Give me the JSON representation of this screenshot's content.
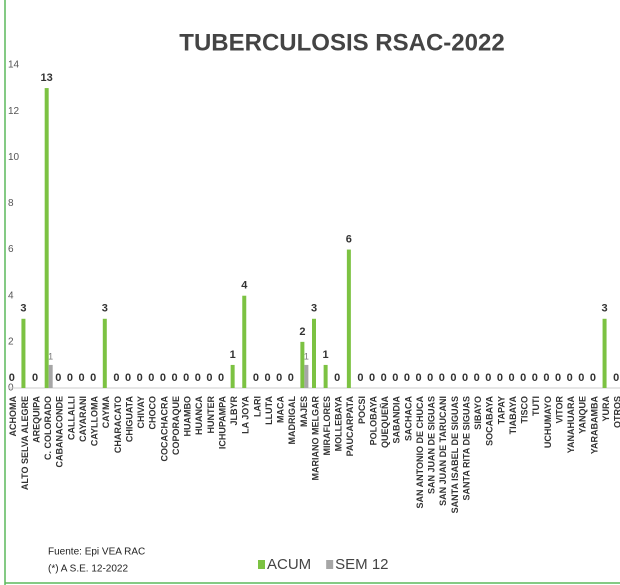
{
  "chart_data": {
    "type": "bar",
    "title": "TUBERCULOSIS RSAC-2022",
    "categories": [
      "ACHOMA",
      "ALTO SELVA ALEGRE",
      "AREQUIPA",
      "C. COLORADO",
      "CABANACONDE",
      "CALLALLI",
      "CAYARANI",
      "CAYLLOMA",
      "CAYMA",
      "CHARACATO",
      "CHIGUATA",
      "CHIVAY",
      "CHOCO",
      "COCACHACRA",
      "COPORAQUE",
      "HUAMBO",
      "HUANCA",
      "HUNTER",
      "ICHUPAMPA",
      "JLBYR",
      "LA JOYA",
      "LARI",
      "LLUTA",
      "MACA",
      "MADRIGAL",
      "MAJES",
      "MARIANO MELGAR",
      "MIRAFLORES",
      "MOLLEBAYA",
      "PAUCARPATA",
      "POCSI",
      "POLOBAYA",
      "QUEQUEÑA",
      "SABANDIA",
      "SACHACA",
      "SAN ANTONIO DE CHUCA",
      "SAN JUAN DE SIGUAS",
      "SAN JUAN DE TARUCANI",
      "SANTA ISABEL DE SIGUAS",
      "SANTA RITA DE SIGUAS",
      "SIBAYO",
      "SOCABAYA",
      "TAPAY",
      "TIABAYA",
      "TISCO",
      "TUTI",
      "UCHUMAYO",
      "VITOR",
      "YANAHUARA",
      "YANQUE",
      "YARABAMBA",
      "YURA",
      "OTROS"
    ],
    "series": [
      {
        "name": "ACUM",
        "color": "#7cc242",
        "values": [
          0,
          3,
          0,
          13,
          0,
          0,
          0,
          0,
          3,
          0,
          0,
          0,
          0,
          0,
          0,
          0,
          0,
          0,
          0,
          1,
          4,
          0,
          0,
          0,
          0,
          2,
          3,
          1,
          0,
          6,
          0,
          0,
          0,
          0,
          0,
          0,
          0,
          0,
          0,
          0,
          0,
          0,
          0,
          0,
          0,
          0,
          0,
          0,
          0,
          0,
          0,
          3,
          0
        ]
      },
      {
        "name": "SEM 12",
        "color": "#a6a6a6",
        "values": [
          0,
          0,
          0,
          1,
          0,
          0,
          0,
          0,
          0,
          0,
          0,
          0,
          0,
          0,
          0,
          0,
          0,
          0,
          0,
          0,
          0,
          0,
          0,
          0,
          0,
          1,
          0,
          0,
          0,
          0,
          0,
          0,
          0,
          0,
          0,
          0,
          0,
          0,
          0,
          0,
          0,
          0,
          0,
          0,
          0,
          0,
          0,
          0,
          0,
          0,
          0,
          0,
          0
        ]
      }
    ],
    "ylim": [
      0,
      14
    ],
    "yticks": [
      0,
      2,
      4,
      6,
      8,
      10,
      12,
      14
    ],
    "grid": false,
    "notes": [
      "Fuente:  Epi VEA RAC",
      "(*) A S.E. 12-2022"
    ]
  }
}
